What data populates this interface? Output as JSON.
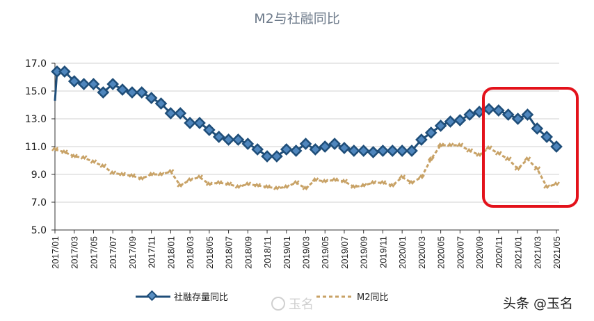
{
  "chart_data": {
    "type": "line",
    "title": "M2与社融同比",
    "xlabel": "",
    "ylabel": "",
    "ylim": [
      5.0,
      17.0
    ],
    "yticks": [
      "17.0",
      "15.0",
      "13.0",
      "11.0",
      "9.0",
      "7.0",
      "5.0"
    ],
    "ytick_values": [
      17,
      15,
      13,
      11,
      9,
      7,
      5
    ],
    "x_tick_labels": [
      "2017/01",
      "2017/03",
      "2017/05",
      "2017/07",
      "2017/09",
      "2017/11",
      "2018/01",
      "2018/03",
      "2018/05",
      "2018/07",
      "2018/09",
      "2018/11",
      "2019/01",
      "2019/03",
      "2019/05",
      "2019/07",
      "2019/09",
      "2019/11",
      "2020/01",
      "2020/03",
      "2020/05",
      "2020/07",
      "2020/09",
      "2020/11",
      "2021/01",
      "2021/03",
      "2021/05"
    ],
    "grid": true,
    "legend_position": "bottom",
    "series": [
      {
        "name": "社融存量同比",
        "color": "#1f4e79",
        "marker": "diamond",
        "values": [
          16.4,
          16.4,
          15.7,
          15.5,
          15.5,
          14.9,
          15.5,
          15.1,
          14.9,
          14.9,
          14.5,
          14.1,
          13.4,
          13.4,
          12.7,
          12.7,
          12.2,
          11.7,
          11.5,
          11.5,
          11.2,
          10.8,
          10.3,
          10.3,
          10.8,
          10.7,
          11.2,
          10.8,
          11.0,
          11.2,
          10.9,
          10.7,
          10.7,
          10.6,
          10.7,
          10.7,
          10.7,
          10.7,
          11.5,
          12.0,
          12.5,
          12.8,
          12.9,
          13.3,
          13.5,
          13.7,
          13.6,
          13.3,
          13.0,
          13.3,
          12.3,
          11.7,
          11.0
        ]
      },
      {
        "name": "M2同比",
        "color": "#c8a266",
        "marker": "dashed",
        "values": [
          10.8,
          10.6,
          10.3,
          10.2,
          9.9,
          9.6,
          9.1,
          9.0,
          8.9,
          8.7,
          9.0,
          9.0,
          9.2,
          8.2,
          8.6,
          8.8,
          8.3,
          8.4,
          8.3,
          8.1,
          8.3,
          8.2,
          8.1,
          8.0,
          8.1,
          8.4,
          8.0,
          8.6,
          8.5,
          8.6,
          8.5,
          8.1,
          8.2,
          8.4,
          8.4,
          8.2,
          8.8,
          8.4,
          8.8,
          10.1,
          11.1,
          11.1,
          11.1,
          10.7,
          10.4,
          10.9,
          10.5,
          10.1,
          9.4,
          10.1,
          9.4,
          8.1,
          8.3
        ]
      }
    ],
    "highlight_box": {
      "color": "#e3121b",
      "from": "2020/10",
      "to": "2021/05"
    }
  },
  "watermark": "玉名",
  "source": "头条 @玉名"
}
